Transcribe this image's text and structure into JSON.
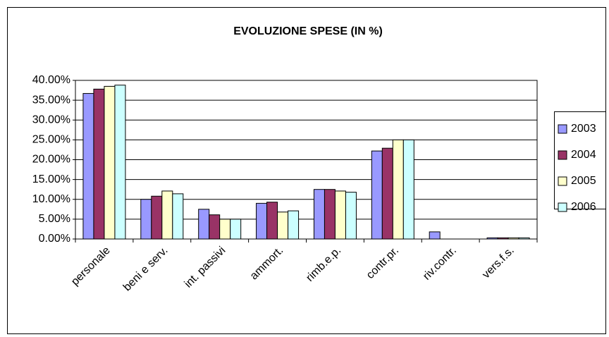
{
  "chart_data": {
    "type": "bar",
    "title": "EVOLUZIONE SPESE (IN %)",
    "categories": [
      "personale",
      "beni e serv.",
      "int. passivi",
      "ammort.",
      "rimb.e.p.",
      "contr.pr.",
      "riv.contr.",
      "vers.f.s."
    ],
    "series": [
      {
        "name": "2003",
        "color": "#9999ff",
        "values": [
          36.7,
          10.0,
          7.5,
          9.0,
          12.5,
          22.2,
          1.8,
          0.3
        ]
      },
      {
        "name": "2004",
        "color": "#993366",
        "values": [
          37.8,
          10.8,
          6.1,
          9.3,
          12.5,
          22.9,
          0,
          0.3
        ]
      },
      {
        "name": "2005",
        "color": "#ffffcc",
        "values": [
          38.5,
          12.1,
          5.0,
          6.8,
          12.1,
          25.0,
          0,
          0.3
        ]
      },
      {
        "name": "2006",
        "color": "#ccffff",
        "values": [
          38.8,
          11.4,
          5.0,
          7.1,
          11.8,
          25.0,
          0,
          0.3
        ]
      }
    ],
    "ylim": [
      0,
      40
    ],
    "yticks": [
      {
        "value": 0,
        "label": "0.00%"
      },
      {
        "value": 5,
        "label": "5.00%"
      },
      {
        "value": 10,
        "label": "10.00%"
      },
      {
        "value": 15,
        "label": "15.00%"
      },
      {
        "value": 20,
        "label": "20.00%"
      },
      {
        "value": 25,
        "label": "25.00%"
      },
      {
        "value": 30,
        "label": "30.00%"
      },
      {
        "value": 35,
        "label": "35.00%"
      },
      {
        "value": 40,
        "label": "40.00%"
      }
    ],
    "grid": true,
    "legend": "right"
  }
}
